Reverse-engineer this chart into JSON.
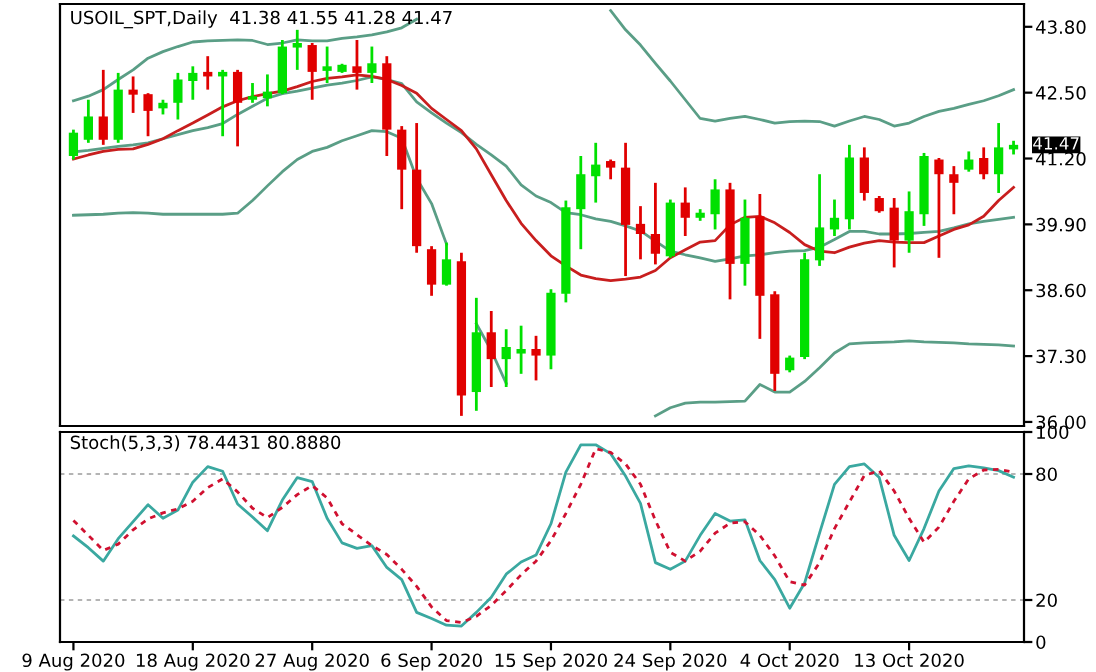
{
  "chart_data": [
    {
      "type": "candlestick",
      "title": "USOIL_SPT,Daily  41.38 41.55 41.28 41.47",
      "categories": [
        null,
        null,
        null,
        null,
        null,
        null,
        null,
        null,
        null,
        null,
        null,
        null,
        null,
        null,
        null,
        null,
        null,
        null,
        null,
        null,
        null,
        null,
        null,
        null,
        null,
        null,
        null,
        null,
        null,
        null,
        null,
        null,
        null,
        null,
        null,
        null,
        null,
        null,
        null,
        null,
        null,
        null,
        null,
        null,
        null,
        null,
        null,
        null,
        null,
        null,
        null,
        null,
        null,
        null,
        null,
        null,
        null,
        null,
        null,
        null,
        null,
        null,
        null,
        null
      ],
      "ohlc": [
        [
          41.25,
          41.77,
          41.18,
          41.71
        ],
        [
          41.57,
          42.36,
          41.51,
          42.03
        ],
        [
          42.03,
          42.95,
          41.47,
          41.57
        ],
        [
          41.57,
          42.89,
          41.51,
          42.56
        ],
        [
          42.56,
          42.82,
          42.1,
          42.46
        ],
        [
          42.47,
          42.49,
          41.64,
          42.14
        ],
        [
          42.19,
          42.36,
          42.07,
          42.3
        ],
        [
          42.3,
          42.89,
          41.97,
          42.76
        ],
        [
          42.73,
          43.02,
          42.36,
          42.89
        ],
        [
          42.91,
          43.22,
          42.56,
          42.82
        ],
        [
          42.82,
          42.95,
          41.64,
          42.91
        ],
        [
          42.91,
          42.95,
          41.44,
          42.3
        ],
        [
          42.36,
          42.69,
          42.3,
          42.43
        ],
        [
          42.39,
          42.86,
          42.23,
          42.52
        ],
        [
          42.49,
          43.54,
          42.47,
          43.41
        ],
        [
          43.39,
          43.74,
          42.95,
          43.48
        ],
        [
          43.44,
          43.48,
          42.36,
          42.91
        ],
        [
          42.93,
          43.41,
          42.69,
          43.02
        ],
        [
          42.91,
          43.07,
          42.89,
          43.05
        ],
        [
          43.02,
          43.54,
          42.56,
          42.89
        ],
        [
          42.89,
          43.41,
          42.69,
          43.08
        ],
        [
          43.08,
          43.22,
          41.25,
          41.77
        ],
        [
          41.77,
          41.84,
          40.2,
          40.98
        ],
        [
          40.98,
          41.9,
          39.34,
          39.47
        ],
        [
          39.41,
          39.47,
          38.49,
          38.71
        ],
        [
          38.71,
          39.54,
          38.69,
          39.21
        ],
        [
          39.17,
          39.34,
          36.12,
          36.52
        ],
        [
          36.59,
          38.45,
          36.22,
          37.77
        ],
        [
          37.77,
          38.19,
          36.69,
          37.24
        ],
        [
          37.24,
          37.83,
          36.69,
          37.48
        ],
        [
          37.35,
          37.9,
          36.95,
          37.44
        ],
        [
          37.44,
          37.7,
          36.82,
          37.31
        ],
        [
          37.31,
          38.62,
          37.04,
          38.55
        ],
        [
          38.53,
          40.37,
          38.36,
          40.24
        ],
        [
          40.2,
          41.25,
          39.41,
          40.89
        ],
        [
          40.85,
          41.51,
          40.33,
          41.08
        ],
        [
          41.15,
          41.18,
          40.79,
          41.02
        ],
        [
          41.02,
          41.51,
          38.88,
          39.89
        ],
        [
          39.91,
          40.26,
          39.21,
          39.71
        ],
        [
          39.71,
          40.72,
          39.11,
          39.32
        ],
        [
          39.27,
          40.39,
          39.24,
          40.33
        ],
        [
          40.33,
          40.63,
          39.67,
          40.03
        ],
        [
          40.03,
          40.2,
          39.97,
          40.13
        ],
        [
          40.1,
          40.79,
          39.8,
          40.59
        ],
        [
          40.59,
          40.72,
          38.42,
          39.12
        ],
        [
          39.12,
          40.39,
          38.69,
          40.03
        ],
        [
          40.06,
          40.5,
          37.64,
          38.49
        ],
        [
          38.52,
          38.58,
          36.61,
          36.95
        ],
        [
          37.02,
          37.31,
          36.98,
          37.27
        ],
        [
          37.28,
          39.34,
          37.24,
          39.21
        ],
        [
          39.19,
          40.89,
          39.08,
          39.84
        ],
        [
          39.8,
          40.39,
          39.67,
          40.03
        ],
        [
          40.0,
          41.47,
          39.8,
          41.22
        ],
        [
          41.22,
          41.42,
          40.37,
          40.52
        ],
        [
          40.42,
          40.46,
          40.13,
          40.16
        ],
        [
          40.23,
          40.42,
          39.05,
          39.58
        ],
        [
          39.58,
          40.55,
          39.34,
          40.16
        ],
        [
          40.1,
          41.31,
          39.87,
          41.25
        ],
        [
          41.18,
          41.21,
          39.24,
          40.89
        ],
        [
          40.89,
          41.05,
          40.1,
          40.72
        ],
        [
          40.98,
          41.34,
          40.94,
          41.18
        ],
        [
          41.21,
          41.42,
          40.79,
          40.89
        ],
        [
          40.89,
          41.9,
          40.52,
          41.42
        ],
        [
          41.38,
          41.55,
          41.28,
          41.47
        ]
      ],
      "colors": [
        "#00e000",
        "#00e000",
        "#e00000",
        "#00e000",
        "#e00000",
        "#e00000",
        "#00e000",
        "#00e000",
        "#00e000",
        "#e00000",
        "#00e000",
        "#e00000",
        "#00e000",
        "#00e000",
        "#00e000",
        "#00e000",
        "#e00000",
        "#00e000",
        "#00e000",
        "#e00000",
        "#00e000",
        "#e00000",
        "#e00000",
        "#e00000",
        "#e00000",
        "#00e000",
        "#e00000",
        "#00e000",
        "#e00000",
        "#00e000",
        "#00e000",
        "#e00000",
        "#00e000",
        "#00e000",
        "#00e000",
        "#00e000",
        "#e00000",
        "#e00000",
        "#e00000",
        "#e00000",
        "#00e000",
        "#e00000",
        "#00e000",
        "#00e000",
        "#e00000",
        "#00e000",
        "#e00000",
        "#e00000",
        "#00e000",
        "#00e000",
        "#00e000",
        "#00e000",
        "#00e000",
        "#e00000",
        "#e00000",
        "#e00000",
        "#00e000",
        "#00e000",
        "#e00000",
        "#e00000",
        "#00e000",
        "#e00000",
        "#00e000",
        "#00e000"
      ],
      "series": [
        {
          "type": "line",
          "color": "#5a9e86",
          "values": [
            42.34,
            42.43,
            42.56,
            42.76,
            42.95,
            43.18,
            43.31,
            43.41,
            43.5,
            43.52,
            43.53,
            43.54,
            43.53,
            43.45,
            43.48,
            43.54,
            43.52,
            43.52,
            43.57,
            43.6,
            43.64,
            43.7,
            43.78,
            43.95,
            null,
            null,
            null,
            null,
            null,
            null,
            null,
            null,
            null,
            null,
            null,
            null,
            44.12,
            43.74,
            43.44,
            43.08,
            42.73,
            42.36,
            41.99,
            41.94,
            41.99,
            42.03,
            41.97,
            41.9,
            41.93,
            41.94,
            41.93,
            41.84,
            41.94,
            42.03,
            41.97,
            41.84,
            41.9,
            42.03,
            42.13,
            42.19,
            42.27,
            42.34,
            42.44,
            42.56
          ]
        },
        {
          "type": "line",
          "color": "#5a9e86",
          "values": [
            41.33,
            41.36,
            41.4,
            41.44,
            41.47,
            41.51,
            41.59,
            41.67,
            41.75,
            41.81,
            41.89,
            42.07,
            42.23,
            42.39,
            42.48,
            42.53,
            42.59,
            42.65,
            42.69,
            42.74,
            42.81,
            42.76,
            42.68,
            42.32,
            42.1,
            41.9,
            41.71,
            41.48,
            41.27,
            41.05,
            40.68,
            40.46,
            40.33,
            40.13,
            40.09,
            40.01,
            39.96,
            39.87,
            39.77,
            39.57,
            39.37,
            39.3,
            39.24,
            39.17,
            39.22,
            39.28,
            39.3,
            39.34,
            39.37,
            39.38,
            39.45,
            39.6,
            39.76,
            39.76,
            39.71,
            39.71,
            39.72,
            39.74,
            39.76,
            39.83,
            39.91,
            39.96,
            40.0,
            40.04
          ]
        },
        {
          "type": "line",
          "color": "#5a9e86",
          "values": [
            40.08,
            40.09,
            40.1,
            40.12,
            40.13,
            40.12,
            40.1,
            40.1,
            40.1,
            40.1,
            40.1,
            40.12,
            40.37,
            40.66,
            40.94,
            41.18,
            41.34,
            41.42,
            41.55,
            41.65,
            41.75,
            41.73,
            41.6,
            40.81,
            40.31,
            39.51,
            null,
            37.94,
            37.41,
            36.76,
            null,
            null,
            null,
            null,
            null,
            null,
            null,
            null,
            null,
            36.12,
            36.28,
            36.37,
            36.39,
            36.39,
            36.4,
            36.41,
            36.74,
            36.59,
            36.59,
            36.8,
            37.07,
            37.36,
            37.54,
            37.56,
            37.57,
            37.58,
            37.6,
            37.58,
            37.57,
            37.56,
            37.54,
            37.53,
            37.52,
            37.5
          ]
        },
        {
          "type": "line",
          "color": "#c81e1e",
          "values": [
            41.19,
            41.27,
            41.34,
            41.38,
            41.39,
            41.48,
            41.59,
            41.75,
            41.9,
            42.06,
            42.22,
            42.34,
            42.42,
            42.48,
            42.53,
            42.62,
            42.72,
            42.78,
            42.81,
            42.85,
            42.82,
            42.76,
            42.64,
            42.49,
            42.19,
            41.97,
            41.75,
            41.39,
            40.88,
            40.37,
            39.92,
            39.58,
            39.28,
            39.08,
            38.9,
            38.83,
            38.79,
            38.82,
            38.86,
            38.99,
            39.24,
            39.4,
            39.55,
            39.58,
            39.89,
            40.04,
            40.06,
            39.93,
            39.74,
            39.5,
            39.37,
            39.34,
            39.45,
            39.53,
            39.58,
            39.55,
            39.54,
            39.54,
            39.67,
            39.8,
            39.89,
            40.06,
            40.37,
            40.63
          ]
        }
      ],
      "ylim": [
        35.92,
        44.25
      ],
      "yticks": [
        {
          "value": 43.8,
          "label": "43.80"
        },
        {
          "value": 42.5,
          "label": "42.50"
        },
        {
          "value": 41.2,
          "label": "41.20"
        },
        {
          "value": 39.9,
          "label": "39.90"
        },
        {
          "value": 38.6,
          "label": "38.60"
        },
        {
          "value": 37.3,
          "label": "37.30"
        },
        {
          "value": 36.0,
          "label": "36.00"
        }
      ],
      "annotations": [
        "41.47"
      ],
      "tick_labels": "y",
      "grid": false,
      "legend": false
    },
    {
      "type": "line",
      "title": "Stoch(5,3,3) 78.4431 80.8880",
      "categories": [
        "9 Aug 2020",
        null,
        null,
        null,
        null,
        null,
        null,
        null,
        "18 Aug 2020",
        null,
        null,
        null,
        null,
        null,
        null,
        null,
        "27 Aug 2020",
        null,
        null,
        null,
        null,
        null,
        null,
        null,
        "6 Sep 2020",
        null,
        null,
        null,
        null,
        null,
        null,
        null,
        "15 Sep 2020",
        null,
        null,
        null,
        null,
        null,
        null,
        null,
        "24 Sep 2020",
        null,
        null,
        null,
        null,
        null,
        null,
        null,
        "4 Oct 2020",
        null,
        null,
        null,
        null,
        null,
        null,
        null,
        "13 Oct 2020",
        null,
        null,
        null,
        null,
        null,
        null,
        null
      ],
      "series": [
        {
          "color": "#3aa8a0",
          "line_style": "solid",
          "values": [
            50.5,
            44.9,
            38.5,
            49.2,
            57.3,
            65.4,
            58.9,
            62.8,
            76.1,
            83.5,
            81.3,
            65.7,
            59.5,
            53.0,
            67.6,
            78.3,
            76.4,
            58.9,
            47.2,
            44.6,
            45.9,
            35.5,
            29.7,
            14.1,
            11.2,
            8.0,
            7.6,
            14.1,
            21.3,
            32.3,
            38.1,
            41.4,
            56.3,
            80.9,
            93.9,
            93.9,
            89.7,
            79.0,
            66.0,
            37.8,
            34.6,
            38.5,
            50.8,
            61.2,
            57.6,
            58.2,
            38.8,
            29.7,
            16.1,
            28.1,
            51.8,
            75.1,
            83.5,
            84.8,
            78.3,
            50.8,
            38.8,
            54.0,
            71.9,
            82.6,
            83.9,
            82.9,
            81.6,
            78.44
          ]
        },
        {
          "color": "#d01030",
          "line_style": "dashed",
          "values": [
            57.9,
            50.8,
            43.6,
            46.6,
            53.4,
            58.6,
            61.5,
            63.4,
            67.0,
            73.5,
            77.7,
            71.5,
            63.7,
            59.2,
            64.1,
            70.2,
            74.5,
            68.6,
            56.3,
            51.1,
            45.9,
            41.7,
            34.6,
            26.5,
            16.7,
            10.2,
            9.3,
            12.2,
            17.4,
            24.5,
            32.0,
            38.5,
            48.2,
            61.2,
            75.1,
            92.0,
            90.3,
            84.8,
            75.1,
            57.9,
            42.7,
            38.5,
            43.3,
            51.8,
            56.6,
            57.3,
            50.8,
            41.0,
            28.7,
            27.1,
            37.8,
            54.0,
            66.7,
            79.3,
            81.6,
            71.9,
            58.9,
            47.5,
            54.7,
            67.0,
            77.7,
            81.9,
            82.2,
            80.89
          ]
        }
      ],
      "ref_lines": [
        {
          "axis": "y",
          "value": 80,
          "color": "#b4b4b4",
          "line_style": "dashed"
        },
        {
          "axis": "y",
          "value": 20,
          "color": "#b4b4b4",
          "line_style": "dashed"
        }
      ],
      "ylim": [
        0,
        100
      ],
      "yticks": [
        100,
        80,
        20,
        0
      ],
      "grid": false,
      "legend": false
    }
  ]
}
